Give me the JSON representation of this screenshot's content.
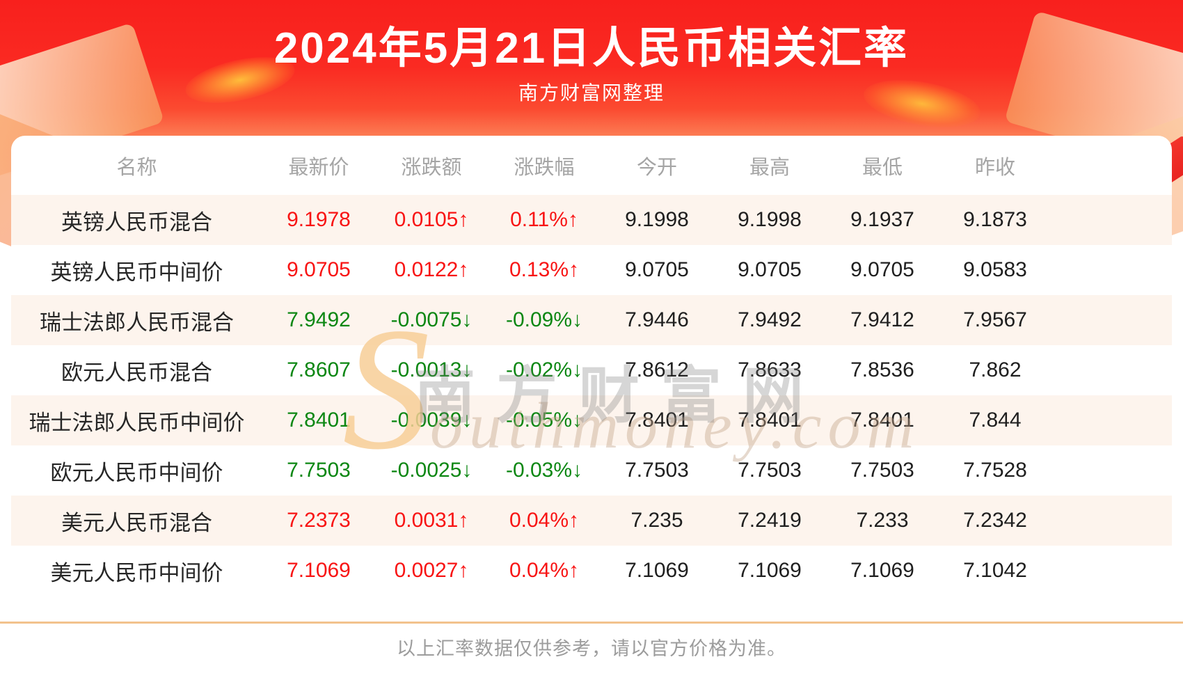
{
  "header": {
    "subtitle": "南方财富网整理"
  },
  "chart_data": {
    "type": "table",
    "title": "2024年5月21日人民币相关汇率",
    "columns": [
      "名称",
      "最新价",
      "涨跌额",
      "涨跌幅",
      "今开",
      "最高",
      "最低",
      "昨收"
    ],
    "rows": [
      {
        "name": "英镑人民币混合",
        "latest": "9.1978",
        "change": "0.0105↑",
        "change_pct": "0.11%↑",
        "direction": "up",
        "open": "9.1998",
        "high": "9.1998",
        "low": "9.1937",
        "prev_close": "9.1873"
      },
      {
        "name": "英镑人民币中间价",
        "latest": "9.0705",
        "change": "0.0122↑",
        "change_pct": "0.13%↑",
        "direction": "up",
        "open": "9.0705",
        "high": "9.0705",
        "low": "9.0705",
        "prev_close": "9.0583"
      },
      {
        "name": "瑞士法郎人民币混合",
        "latest": "7.9492",
        "change": "-0.0075↓",
        "change_pct": "-0.09%↓",
        "direction": "down",
        "open": "7.9446",
        "high": "7.9492",
        "low": "7.9412",
        "prev_close": "7.9567"
      },
      {
        "name": "欧元人民币混合",
        "latest": "7.8607",
        "change": "-0.0013↓",
        "change_pct": "-0.02%↓",
        "direction": "down",
        "open": "7.8612",
        "high": "7.8633",
        "low": "7.8536",
        "prev_close": "7.862"
      },
      {
        "name": "瑞士法郎人民币中间价",
        "latest": "7.8401",
        "change": "-0.0039↓",
        "change_pct": "-0.05%↓",
        "direction": "down",
        "open": "7.8401",
        "high": "7.8401",
        "low": "7.8401",
        "prev_close": "7.844"
      },
      {
        "name": "欧元人民币中间价",
        "latest": "7.7503",
        "change": "-0.0025↓",
        "change_pct": "-0.03%↓",
        "direction": "down",
        "open": "7.7503",
        "high": "7.7503",
        "low": "7.7503",
        "prev_close": "7.7528"
      },
      {
        "name": "美元人民币混合",
        "latest": "7.2373",
        "change": "0.0031↑",
        "change_pct": "0.04%↑",
        "direction": "up",
        "open": "7.235",
        "high": "7.2419",
        "low": "7.233",
        "prev_close": "7.2342"
      },
      {
        "name": "美元人民币中间价",
        "latest": "7.1069",
        "change": "0.0027↑",
        "change_pct": "0.04%↑",
        "direction": "up",
        "open": "7.1069",
        "high": "7.1069",
        "low": "7.1069",
        "prev_close": "7.1042"
      }
    ],
    "legend": "red = up, green = down",
    "grid": false
  },
  "watermark": {
    "cjk": "南方财富网",
    "latin": "Southmoney.com"
  },
  "footer": {
    "disclaimer": "以上汇率数据仅供参考，请以官方价格为准。"
  },
  "colors": {
    "up": "#f81414",
    "down": "#0c8713",
    "banner_red": "#fa2a22",
    "row_tint": "#fdf4ed",
    "divider": "#f2c28d",
    "header_grey": "#a5a5a5",
    "watermark_gold": "#f7ce96"
  }
}
